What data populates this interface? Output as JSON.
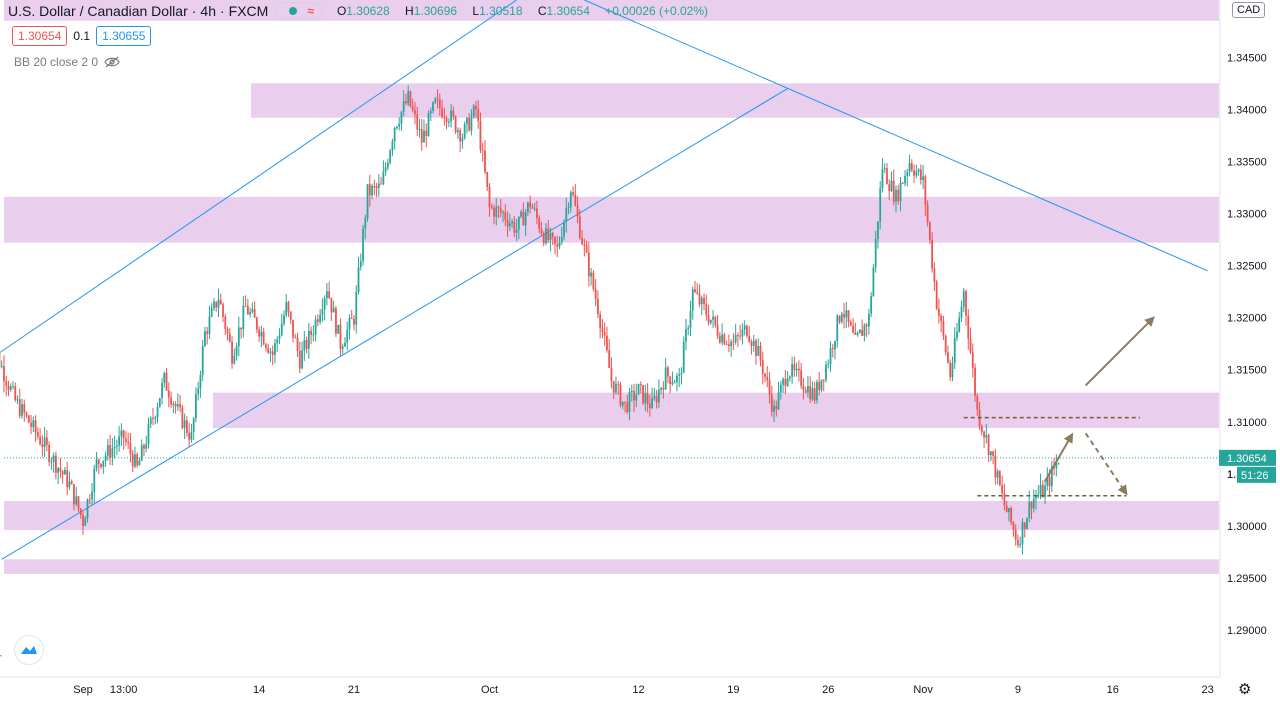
{
  "header": {
    "symbol": "U.S. Dollar / Canadian Dollar",
    "interval": "4h",
    "exchange": "FXCM",
    "separator": "·",
    "o_label": "O",
    "o_value": "1.30628",
    "h_label": "H",
    "h_value": "1.30696",
    "l_label": "L",
    "l_value": "1.30518",
    "c_label": "C",
    "c_value": "1.30654",
    "change": "+0.00026 (+0.02%)"
  },
  "quotes": {
    "sell": "1.30654",
    "spread": "0.1",
    "buy": "1.30655"
  },
  "indicator": {
    "label": "BB 20 close 2 0"
  },
  "currency_button": "CAD",
  "icons": {
    "status_dot": "market-open-dot",
    "wave": "wave-icon",
    "eye": "eye-off-icon",
    "logo": "tradingview-logo-icon",
    "settings": "gear-icon"
  },
  "colors": {
    "up": "#26a69a",
    "down": "#ef5350",
    "zone": "#e1bee7",
    "trendline": "#2196f3",
    "arrow": "#8c7b62",
    "last_price": "#26a69a"
  },
  "chart_data": {
    "type": "candlestick",
    "title": "U.S. Dollar / Canadian Dollar",
    "ylim": [
      1.2855,
      1.3505
    ],
    "y_ticks": [
      "1.34500",
      "1.34000",
      "1.33500",
      "1.33000",
      "1.32500",
      "1.32000",
      "1.31500",
      "1.31000",
      "1.30500",
      "1.30000",
      "1.29500",
      "1.29000"
    ],
    "y_tick_values": [
      1.345,
      1.34,
      1.335,
      1.33,
      1.325,
      1.32,
      1.315,
      1.31,
      1.305,
      1.3,
      1.295,
      1.29
    ],
    "x_ticks": [
      {
        "label": "Sep",
        "date": "2020-09-01"
      },
      {
        "label": "13:00",
        "date": "2020-09-04"
      },
      {
        "label": "14",
        "date": "2020-09-14"
      },
      {
        "label": "21",
        "date": "2020-09-21"
      },
      {
        "label": "Oct",
        "date": "2020-10-01"
      },
      {
        "label": "12",
        "date": "2020-10-12"
      },
      {
        "label": "19",
        "date": "2020-10-19"
      },
      {
        "label": "26",
        "date": "2020-10-26"
      },
      {
        "label": "Nov",
        "date": "2020-11-02"
      },
      {
        "label": "9",
        "date": "2020-11-09"
      },
      {
        "label": "16",
        "date": "2020-11-16"
      },
      {
        "label": "23",
        "date": "2020-11-23"
      }
    ],
    "last_price": "1.30654",
    "countdown": "51:26",
    "axis_partial": "1.",
    "zones": [
      {
        "from": 1.3485,
        "to": 1.3505
      },
      {
        "from": 1.3392,
        "to": 1.3425
      },
      {
        "from": 1.3272,
        "to": 1.3316
      },
      {
        "from": 1.3094,
        "to": 1.3128
      },
      {
        "from": 1.2996,
        "to": 1.3024
      },
      {
        "from": 1.2954,
        "to": 1.2968
      }
    ],
    "trendlines": [
      {
        "from": [
          "2020-08-24",
          1.315
        ],
        "to": [
          "2020-10-03",
          1.3505
        ]
      },
      {
        "from": [
          "2020-08-26",
          1.2968
        ],
        "to": [
          "2020-10-23",
          1.342
        ]
      },
      {
        "from": [
          "2020-10-08",
          1.3505
        ],
        "to": [
          "2020-11-23",
          1.3245
        ]
      },
      {
        "from": [
          "2020-08-24",
          1.2885
        ],
        "to": [
          "2020-08-26",
          1.2875
        ]
      }
    ],
    "levels": [
      {
        "price": 1.3104,
        "from": "2020-11-05",
        "to": "2020-11-18"
      },
      {
        "price": 1.3029,
        "from": "2020-11-06",
        "to": "2020-11-17"
      }
    ],
    "arrows": [
      {
        "from": [
          "2020-11-14",
          1.3135
        ],
        "to": [
          "2020-11-19",
          1.32
        ],
        "dashed": false
      },
      {
        "from": [
          "2020-11-11",
          1.3043
        ],
        "to": [
          "2020-11-13",
          1.3088
        ],
        "dashed": false
      },
      {
        "from": [
          "2020-11-14",
          1.3089
        ],
        "to": [
          "2020-11-17",
          1.3031
        ],
        "dashed": true
      }
    ],
    "path": [
      [
        "2020-08-25",
        1.3185
      ],
      [
        "2020-08-27",
        1.312
      ],
      [
        "2020-08-29",
        1.308
      ],
      [
        "2020-08-31",
        1.304
      ],
      [
        "2020-09-01",
        1.3005
      ],
      [
        "2020-09-02",
        1.306
      ],
      [
        "2020-09-04",
        1.3085
      ],
      [
        "2020-09-05",
        1.3055
      ],
      [
        "2020-09-07",
        1.314
      ],
      [
        "2020-09-08",
        1.311
      ],
      [
        "2020-09-09",
        1.3085
      ],
      [
        "2020-09-10",
        1.3185
      ],
      [
        "2020-09-11",
        1.322
      ],
      [
        "2020-09-12",
        1.3165
      ],
      [
        "2020-09-13",
        1.321
      ],
      [
        "2020-09-14",
        1.319
      ],
      [
        "2020-09-15",
        1.3165
      ],
      [
        "2020-09-16",
        1.321
      ],
      [
        "2020-09-17",
        1.316
      ],
      [
        "2020-09-18",
        1.319
      ],
      [
        "2020-09-19",
        1.323
      ],
      [
        "2020-09-20",
        1.3175
      ],
      [
        "2020-09-21",
        1.32
      ],
      [
        "2020-09-22",
        1.332
      ],
      [
        "2020-09-23",
        1.3325
      ],
      [
        "2020-09-24",
        1.3385
      ],
      [
        "2020-09-25",
        1.341
      ],
      [
        "2020-09-26",
        1.337
      ],
      [
        "2020-09-27",
        1.3405
      ],
      [
        "2020-09-28",
        1.3395
      ],
      [
        "2020-09-29",
        1.3375
      ],
      [
        "2020-09-30",
        1.34
      ],
      [
        "2020-10-01",
        1.3305
      ],
      [
        "2020-10-02",
        1.33
      ],
      [
        "2020-10-03",
        1.3285
      ],
      [
        "2020-10-04",
        1.331
      ],
      [
        "2020-10-05",
        1.328
      ],
      [
        "2020-10-06",
        1.3265
      ],
      [
        "2020-10-07",
        1.3325
      ],
      [
        "2020-10-08",
        1.3265
      ],
      [
        "2020-10-09",
        1.321
      ],
      [
        "2020-10-10",
        1.314
      ],
      [
        "2020-10-11",
        1.3115
      ],
      [
        "2020-10-12",
        1.313
      ],
      [
        "2020-10-13",
        1.3115
      ],
      [
        "2020-10-14",
        1.3145
      ],
      [
        "2020-10-15",
        1.314
      ],
      [
        "2020-10-16",
        1.3225
      ],
      [
        "2020-10-17",
        1.3205
      ],
      [
        "2020-10-18",
        1.3185
      ],
      [
        "2020-10-19",
        1.3175
      ],
      [
        "2020-10-20",
        1.319
      ],
      [
        "2020-10-21",
        1.316
      ],
      [
        "2020-10-22",
        1.311
      ],
      [
        "2020-10-23",
        1.315
      ],
      [
        "2020-10-24",
        1.314
      ],
      [
        "2020-10-25",
        1.3125
      ],
      [
        "2020-10-26",
        1.316
      ],
      [
        "2020-10-27",
        1.321
      ],
      [
        "2020-10-28",
        1.3175
      ],
      [
        "2020-10-29",
        1.32
      ],
      [
        "2020-10-30",
        1.3345
      ],
      [
        "2020-10-31",
        1.3315
      ],
      [
        "2020-11-01",
        1.335
      ],
      [
        "2020-11-02",
        1.333
      ],
      [
        "2020-11-03",
        1.3215
      ],
      [
        "2020-11-04",
        1.3145
      ],
      [
        "2020-11-05",
        1.3225
      ],
      [
        "2020-11-06",
        1.311
      ],
      [
        "2020-11-07",
        1.307
      ],
      [
        "2020-11-08",
        1.302
      ],
      [
        "2020-11-09",
        1.2985
      ],
      [
        "2020-11-10",
        1.3025
      ],
      [
        "2020-11-11",
        1.3035
      ],
      [
        "2020-11-12",
        1.3065
      ]
    ]
  }
}
